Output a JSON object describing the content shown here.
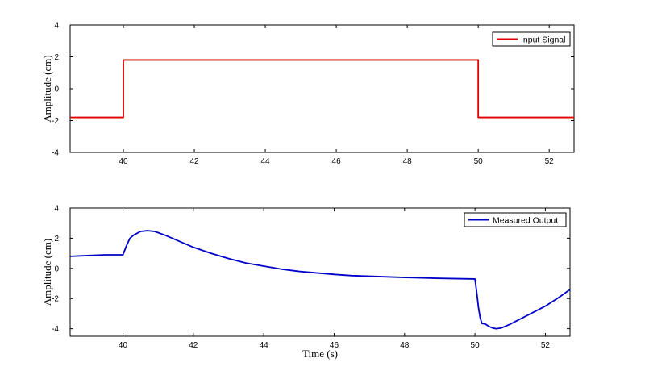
{
  "chart_data": [
    {
      "type": "line",
      "title": "",
      "xlabel": "",
      "ylabel": "Amplitude (cm)",
      "xlim": [
        38.5,
        52.7
      ],
      "ylim": [
        -4,
        4
      ],
      "xticks": [
        40,
        42,
        44,
        46,
        48,
        50,
        52
      ],
      "yticks": [
        4,
        2,
        0,
        -2,
        -4
      ],
      "grid": false,
      "legend_position": "top-right",
      "series": [
        {
          "name": "Input Signal",
          "color": "#e00000",
          "x": [
            38.5,
            40.0,
            40.0,
            50.0,
            50.0,
            52.7
          ],
          "y": [
            -1.8,
            -1.8,
            1.8,
            1.8,
            -1.8,
            -1.8
          ]
        }
      ]
    },
    {
      "type": "line",
      "title": "",
      "xlabel": "Time (s)",
      "ylabel": "Amplitude (cm)",
      "xlim": [
        38.5,
        52.7
      ],
      "ylim": [
        -4.5,
        4
      ],
      "xticks": [
        40,
        42,
        44,
        46,
        48,
        50,
        52
      ],
      "yticks": [
        4,
        2,
        0,
        -2,
        -4
      ],
      "grid": false,
      "legend_position": "top-right",
      "series": [
        {
          "name": "Measured Output",
          "color": "#0000c8",
          "x": [
            38.5,
            39.0,
            39.5,
            40.0,
            40.1,
            40.2,
            40.3,
            40.5,
            40.7,
            40.9,
            41.2,
            41.5,
            42.0,
            42.5,
            43.0,
            43.5,
            44.0,
            44.5,
            45.0,
            45.5,
            46.0,
            46.5,
            47.0,
            47.5,
            48.0,
            48.5,
            49.0,
            49.5,
            50.0,
            50.05,
            50.1,
            50.15,
            50.2,
            50.3,
            50.4,
            50.5,
            50.6,
            50.75,
            51.0,
            51.5,
            52.0,
            52.4,
            52.7
          ],
          "y": [
            0.8,
            0.85,
            0.9,
            0.9,
            1.5,
            2.0,
            2.2,
            2.45,
            2.5,
            2.45,
            2.2,
            1.9,
            1.4,
            1.0,
            0.65,
            0.35,
            0.15,
            -0.05,
            -0.2,
            -0.3,
            -0.4,
            -0.48,
            -0.52,
            -0.56,
            -0.6,
            -0.63,
            -0.66,
            -0.68,
            -0.7,
            -1.6,
            -2.6,
            -3.3,
            -3.65,
            -3.7,
            -3.85,
            -3.95,
            -4.0,
            -3.95,
            -3.7,
            -3.1,
            -2.5,
            -1.9,
            -1.4
          ]
        }
      ]
    }
  ]
}
